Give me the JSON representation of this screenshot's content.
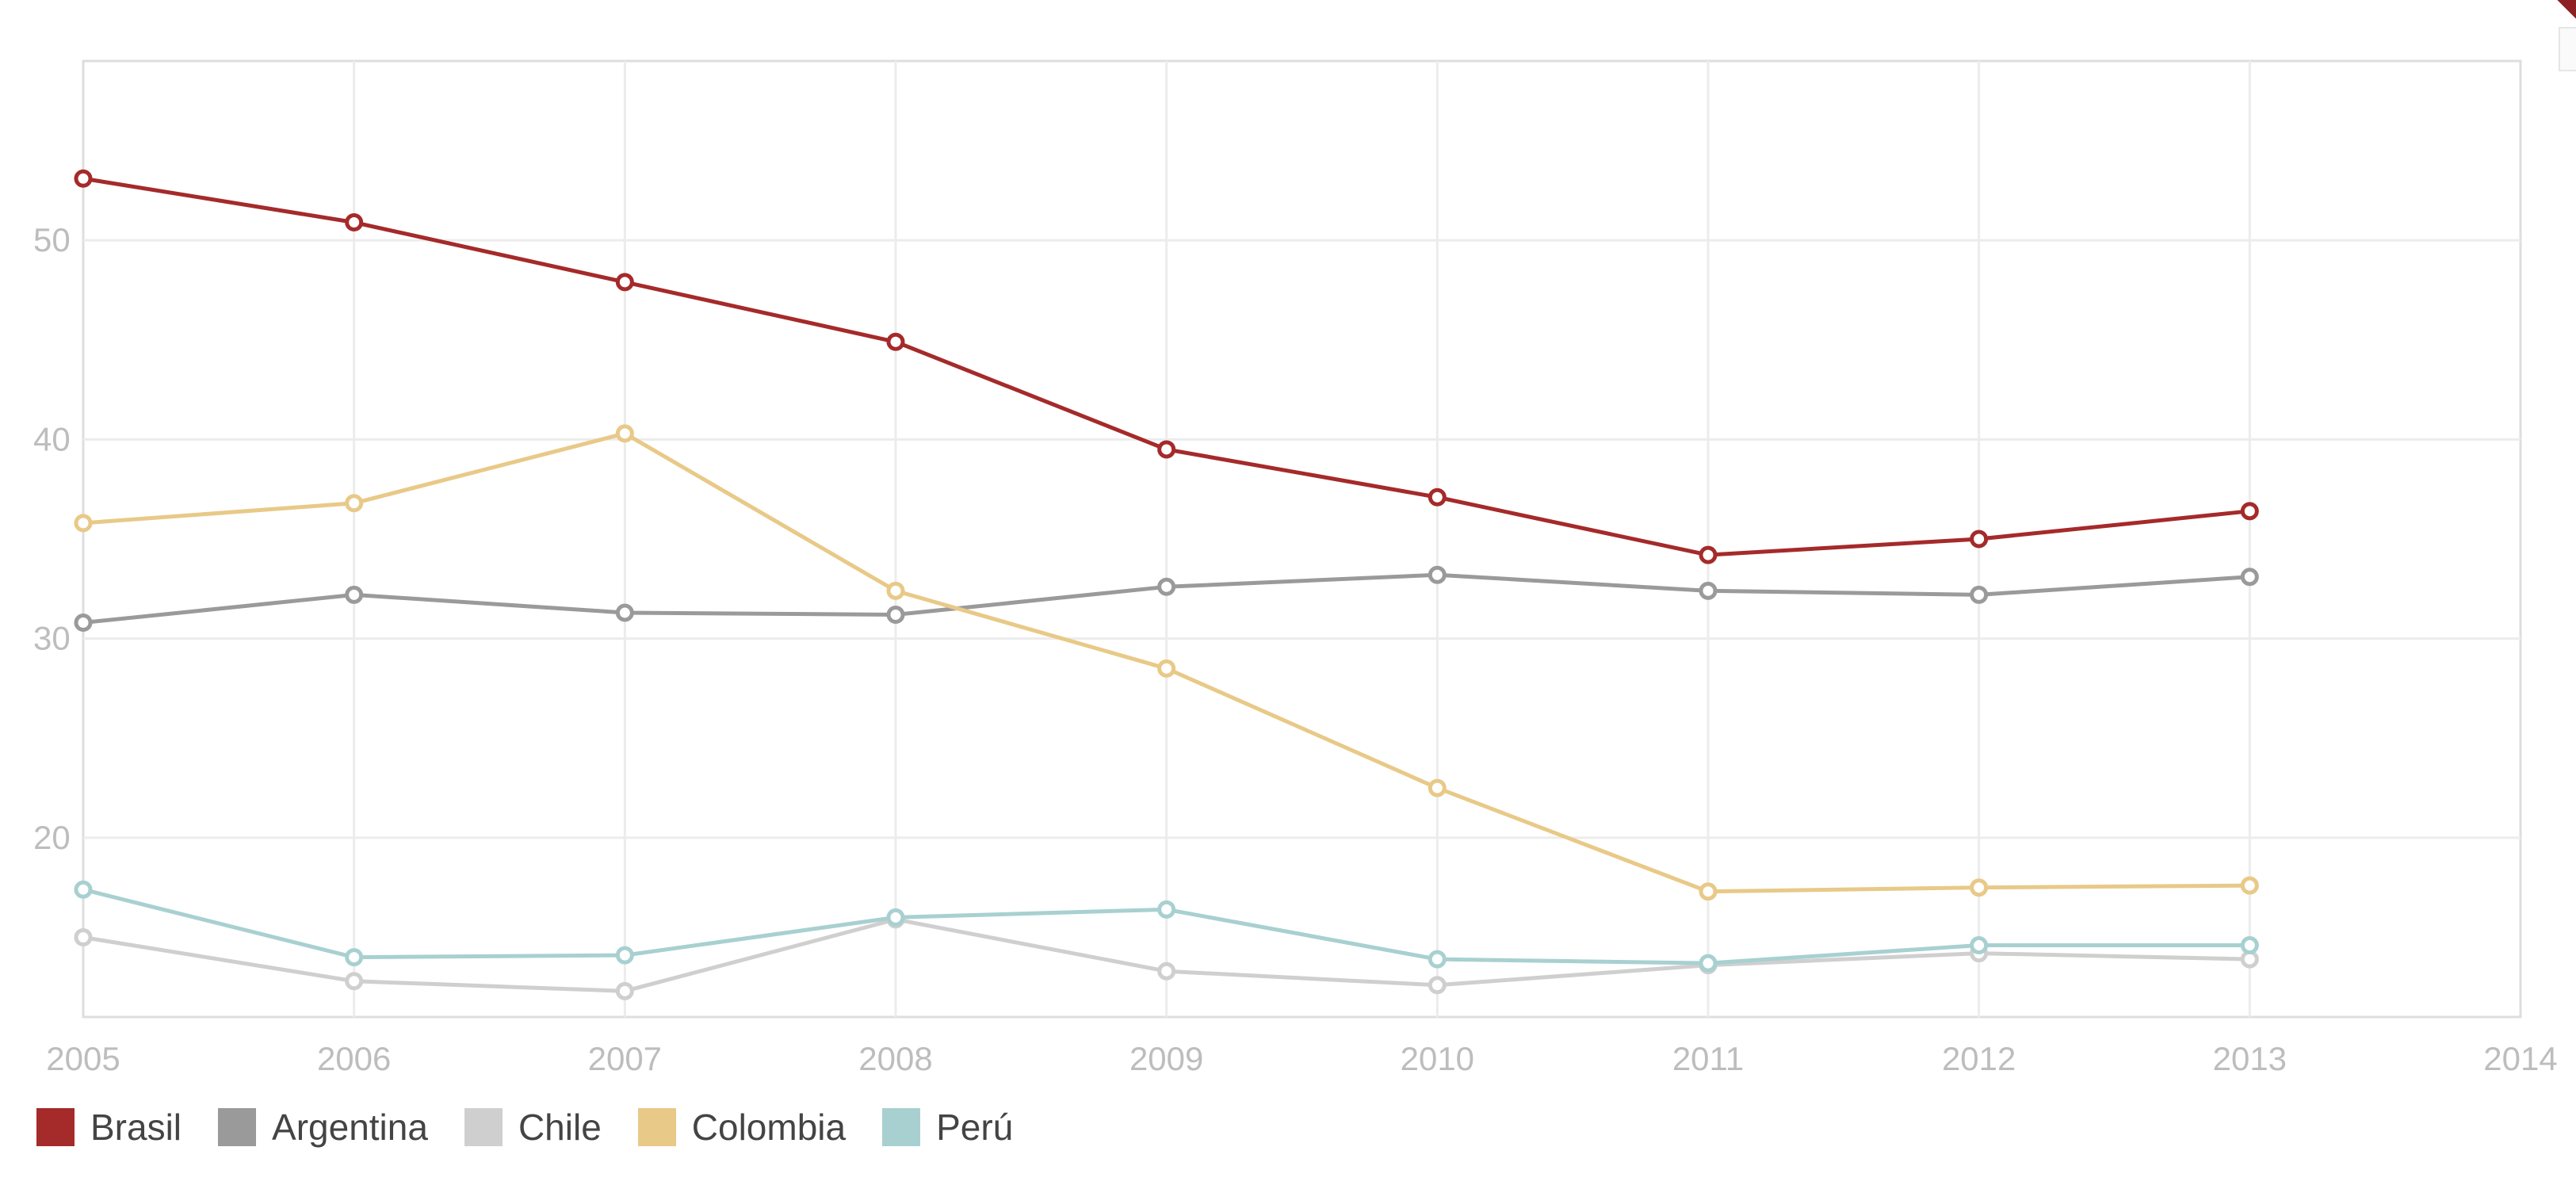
{
  "chart_data": {
    "type": "line",
    "title": "",
    "xlabel": "",
    "ylabel": "",
    "x": [
      "2005",
      "2006",
      "2007",
      "2008",
      "2009",
      "2010",
      "2011",
      "2012",
      "2013"
    ],
    "xlim": [
      2005,
      2014
    ],
    "ylim": [
      11,
      59
    ],
    "x_ticks": [
      "2005",
      "2006",
      "2007",
      "2008",
      "2009",
      "2010",
      "2011",
      "2012",
      "2013",
      "2014"
    ],
    "y_ticks": [
      "20",
      "30",
      "40",
      "50"
    ],
    "grid": true,
    "legend_position": "bottom-left",
    "series": [
      {
        "name": "Brasil",
        "color": "#a52a2a",
        "values": [
          53.1,
          50.9,
          47.9,
          44.9,
          39.5,
          37.1,
          34.2,
          35.0,
          36.4
        ]
      },
      {
        "name": "Argentina",
        "color": "#9a9a9a",
        "values": [
          30.8,
          32.2,
          31.3,
          31.2,
          32.6,
          33.2,
          32.4,
          32.2,
          33.1
        ]
      },
      {
        "name": "Chile",
        "color": "#cfcfcf",
        "values": [
          15.0,
          12.8,
          12.3,
          15.9,
          13.3,
          12.6,
          13.6,
          14.2,
          13.9
        ]
      },
      {
        "name": "Colombia",
        "color": "#e8c987",
        "values": [
          35.8,
          36.8,
          40.3,
          32.4,
          28.5,
          22.5,
          17.3,
          17.5,
          17.6
        ]
      },
      {
        "name": "Perú",
        "color": "#a8d0d0",
        "values": [
          17.4,
          14.0,
          14.1,
          16.0,
          16.4,
          13.9,
          13.7,
          14.6,
          14.6
        ]
      }
    ]
  },
  "legend": {
    "items": [
      {
        "label": "Brasil",
        "color": "#a52a2a"
      },
      {
        "label": "Argentina",
        "color": "#9a9a9a"
      },
      {
        "label": "Chile",
        "color": "#cfcfcf"
      },
      {
        "label": "Colombia",
        "color": "#e8c987"
      },
      {
        "label": "Perú",
        "color": "#a8d0d0"
      }
    ]
  }
}
